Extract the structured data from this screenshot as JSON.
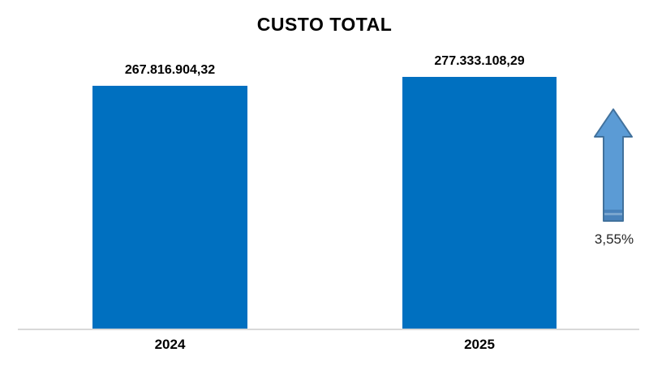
{
  "page": {
    "background": "#FFFFFF"
  },
  "chart_data": {
    "type": "bar",
    "title": "CUSTO TOTAL",
    "categories": [
      "2024",
      "2025"
    ],
    "values": [
      267816904.32,
      277333108.29
    ],
    "value_labels": [
      "267.816.904,32",
      "277.333.108,29"
    ],
    "xlabel": "",
    "ylabel": "",
    "ylim": [
      0,
      300000000
    ],
    "grid": false,
    "legend": false,
    "bar_color": "#0070C0",
    "axis_line_color": "#D9D9D9"
  },
  "annotation": {
    "percent_label": "3,55%",
    "arrow_icon": "up-arrow",
    "arrow_fill": "#5B9BD5",
    "arrow_border": "#41719C",
    "arrow_base_band": "#3A6EA5"
  }
}
